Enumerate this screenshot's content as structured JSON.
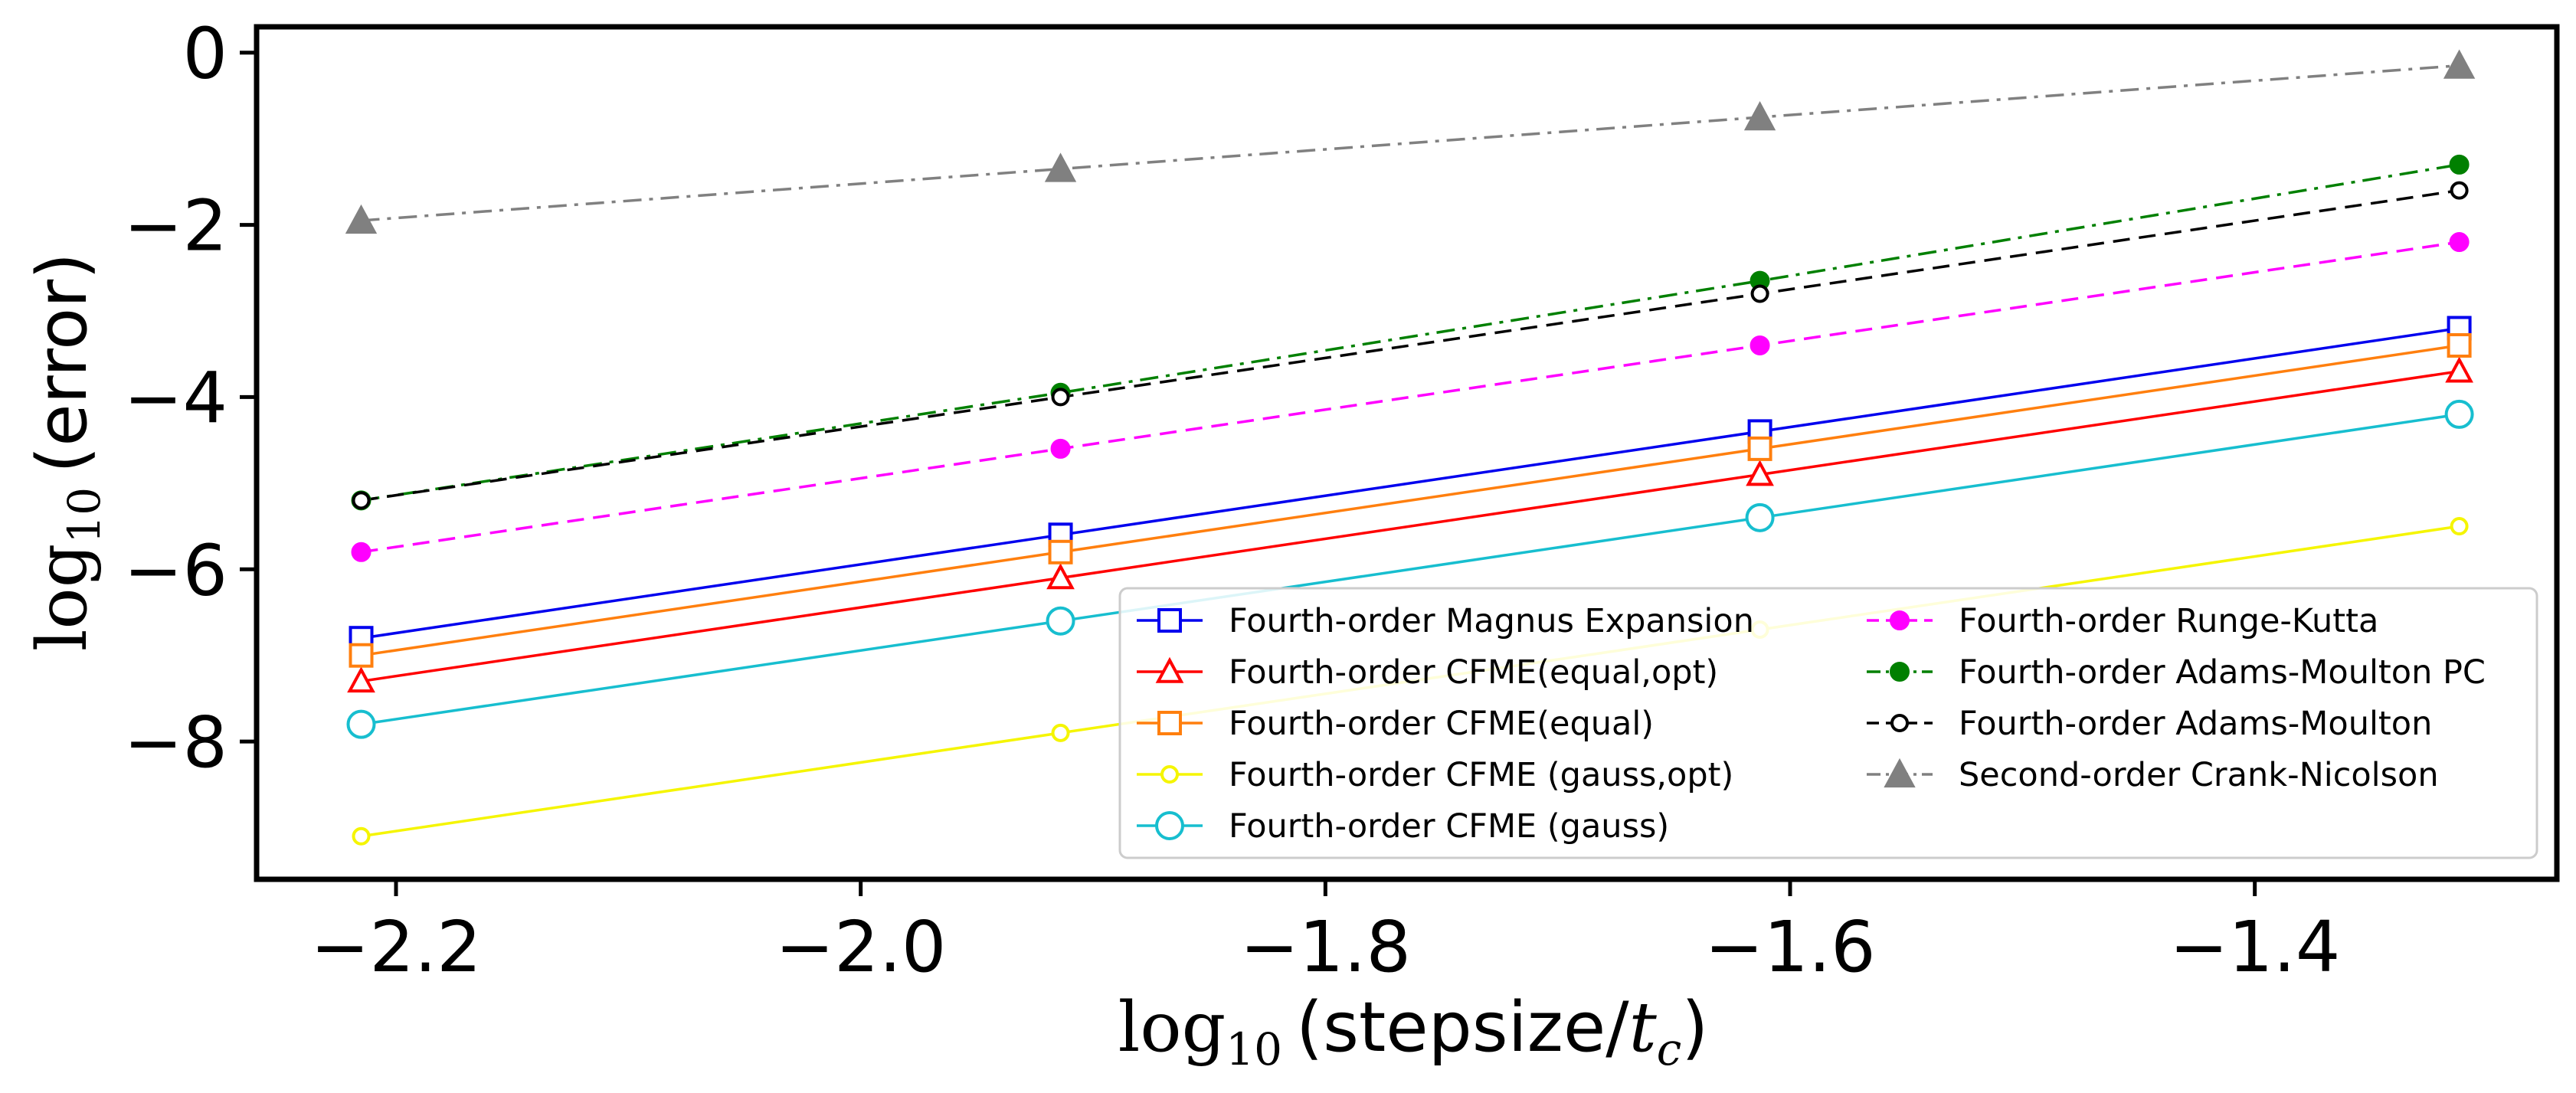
{
  "chart_data": {
    "type": "line",
    "xlabel": {
      "prefix": "log",
      "sub": "10",
      "text": "(stepsize/",
      "var": "t",
      "var_sub": "c",
      "suffix": ")"
    },
    "ylabel": {
      "prefix": "log",
      "sub": "10",
      "text": "(error)"
    },
    "xlim": [
      -2.26,
      -1.27
    ],
    "ylim": [
      -9.6,
      0.3
    ],
    "xticks": [
      -2.2,
      -2.0,
      -1.8,
      -1.6,
      -1.4
    ],
    "xtick_labels": [
      "−2.2",
      "−2.0",
      "−1.8",
      "−1.6",
      "−1.4"
    ],
    "yticks": [
      0,
      -2,
      -4,
      -6,
      -8
    ],
    "ytick_labels": [
      "0",
      "−2",
      "−4",
      "−6",
      "−8"
    ],
    "grid": false,
    "legend_position": "lower-right",
    "x": [
      -2.215,
      -1.914,
      -1.613,
      -1.312
    ],
    "series": [
      {
        "name": "Fourth-order Magnus Expansion",
        "color": "#0000ee",
        "marker": "open-square",
        "line": "solid",
        "values": [
          -6.8,
          -5.6,
          -4.4,
          -3.2
        ]
      },
      {
        "name": "Fourth-order CFME(equal,opt)",
        "color": "#ff0000",
        "marker": "open-triangle",
        "line": "solid",
        "values": [
          -7.3,
          -6.1,
          -4.9,
          -3.7
        ]
      },
      {
        "name": "Fourth-order CFME(equal)",
        "color": "#ff7f0e",
        "marker": "open-square",
        "line": "solid",
        "values": [
          -7.0,
          -5.8,
          -4.6,
          -3.4
        ]
      },
      {
        "name": "Fourth-order CFME (gauss,opt)",
        "color": "#f5f500",
        "marker": "small-open-circle",
        "line": "solid",
        "values": [
          -9.1,
          -7.9,
          -6.7,
          -5.5
        ]
      },
      {
        "name": "Fourth-order CFME (gauss)",
        "color": "#17becf",
        "marker": "open-circle",
        "line": "solid",
        "values": [
          -7.8,
          -6.6,
          -5.4,
          -4.2
        ]
      },
      {
        "name": "Fourth-order Runge-Kutta",
        "color": "#ff00ff",
        "marker": "filled-circle",
        "line": "dashed",
        "values": [
          -5.8,
          -4.6,
          -3.4,
          -2.2
        ]
      },
      {
        "name": "Fourth-order Adams-Moulton PC",
        "color": "#008000",
        "marker": "filled-circle",
        "line": "dashdot",
        "values": [
          -5.2,
          -3.95,
          -2.65,
          -1.3
        ]
      },
      {
        "name": "Fourth-order Adams-Moulton",
        "color": "#000000",
        "marker": "small-open-circle",
        "line": "dashed",
        "values": [
          -5.2,
          -4.0,
          -2.8,
          -1.6
        ]
      },
      {
        "name": "Second-order Crank-Nicolson",
        "color": "#808080",
        "marker": "filled-triangle",
        "line": "dashdot",
        "values": [
          -1.95,
          -1.35,
          -0.75,
          -0.15
        ]
      }
    ]
  }
}
